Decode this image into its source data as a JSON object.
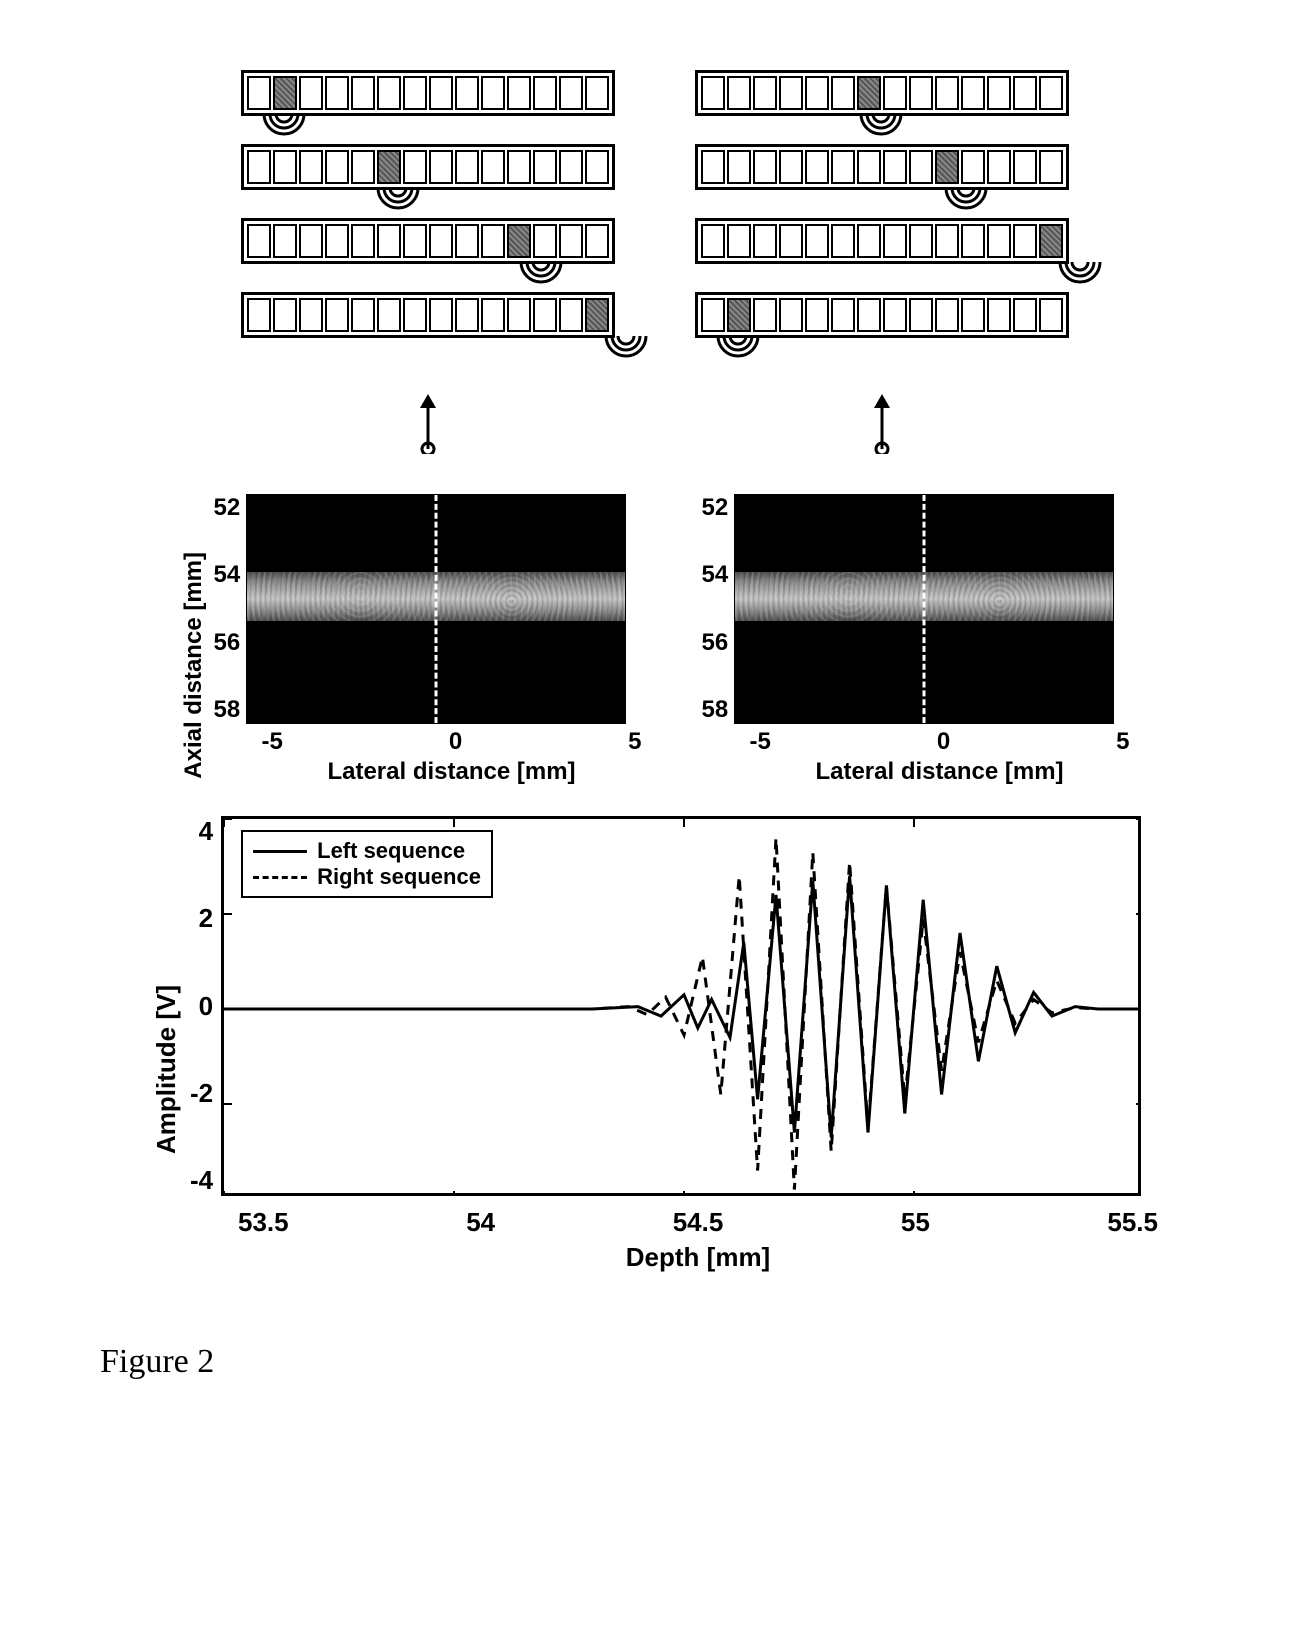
{
  "caption": "Figure 2",
  "arrays": {
    "element_count": 14,
    "left_sequence_active": [
      1,
      5,
      10,
      13
    ],
    "right_sequence_active": [
      6,
      9,
      13,
      1
    ]
  },
  "bmode": {
    "ylabel": "Axial distance [mm]",
    "xlabel": "Lateral distance [mm]",
    "yticks": [
      "52",
      "54",
      "56",
      "58"
    ],
    "xticks": [
      "-5",
      "0",
      "5"
    ],
    "ylim": [
      52,
      58
    ],
    "xlim": [
      -5,
      5
    ],
    "band_top_mm": 54,
    "band_bottom_mm": 55.3,
    "background_color": "#000000",
    "band_color_mid": "#cccccc"
  },
  "waveform": {
    "ylabel": "Amplitude [V]",
    "xlabel": "Depth [mm]",
    "yticks": [
      "4",
      "2",
      "0",
      "-2",
      "-4"
    ],
    "xticks": [
      "53.5",
      "54",
      "54.5",
      "55",
      "55.5"
    ],
    "ylim": [
      -4,
      4
    ],
    "xlim": [
      53.5,
      55.5
    ],
    "legend": {
      "left": "Left sequence",
      "right": "Right sequence"
    },
    "left_series": {
      "color": "#000000",
      "style": "solid",
      "linewidth": 3,
      "points": [
        [
          53.5,
          0.0
        ],
        [
          53.7,
          0.0
        ],
        [
          53.9,
          0.0
        ],
        [
          54.1,
          0.0
        ],
        [
          54.3,
          0.0
        ],
        [
          54.4,
          0.05
        ],
        [
          54.45,
          -0.15
        ],
        [
          54.5,
          0.3
        ],
        [
          54.53,
          -0.4
        ],
        [
          54.56,
          0.2
        ],
        [
          54.6,
          -0.6
        ],
        [
          54.63,
          1.4
        ],
        [
          54.66,
          -1.9
        ],
        [
          54.7,
          2.4
        ],
        [
          54.74,
          -2.6
        ],
        [
          54.78,
          2.7
        ],
        [
          54.82,
          -2.7
        ],
        [
          54.86,
          2.8
        ],
        [
          54.9,
          -2.6
        ],
        [
          54.94,
          2.6
        ],
        [
          54.98,
          -2.2
        ],
        [
          55.02,
          2.3
        ],
        [
          55.06,
          -1.8
        ],
        [
          55.1,
          1.6
        ],
        [
          55.14,
          -1.1
        ],
        [
          55.18,
          0.9
        ],
        [
          55.22,
          -0.5
        ],
        [
          55.26,
          0.35
        ],
        [
          55.3,
          -0.15
        ],
        [
          55.35,
          0.05
        ],
        [
          55.4,
          0.0
        ],
        [
          55.5,
          0.0
        ]
      ]
    },
    "right_series": {
      "color": "#000000",
      "style": "dashed",
      "linewidth": 3,
      "points": [
        [
          53.5,
          0.0
        ],
        [
          53.7,
          0.0
        ],
        [
          53.9,
          0.0
        ],
        [
          54.1,
          0.0
        ],
        [
          54.3,
          0.0
        ],
        [
          54.38,
          0.05
        ],
        [
          54.42,
          -0.12
        ],
        [
          54.46,
          0.25
        ],
        [
          54.5,
          -0.55
        ],
        [
          54.54,
          1.1
        ],
        [
          54.58,
          -1.8
        ],
        [
          54.62,
          2.8
        ],
        [
          54.66,
          -3.4
        ],
        [
          54.7,
          3.6
        ],
        [
          54.74,
          -3.8
        ],
        [
          54.78,
          3.3
        ],
        [
          54.82,
          -3.0
        ],
        [
          54.86,
          3.1
        ],
        [
          54.9,
          -2.5
        ],
        [
          54.94,
          2.6
        ],
        [
          54.98,
          -1.9
        ],
        [
          55.02,
          1.9
        ],
        [
          55.06,
          -1.3
        ],
        [
          55.1,
          1.2
        ],
        [
          55.14,
          -0.7
        ],
        [
          55.18,
          0.6
        ],
        [
          55.22,
          -0.3
        ],
        [
          55.26,
          0.2
        ],
        [
          55.3,
          -0.08
        ],
        [
          55.35,
          0.03
        ],
        [
          55.4,
          0.0
        ],
        [
          55.5,
          0.0
        ]
      ]
    }
  }
}
